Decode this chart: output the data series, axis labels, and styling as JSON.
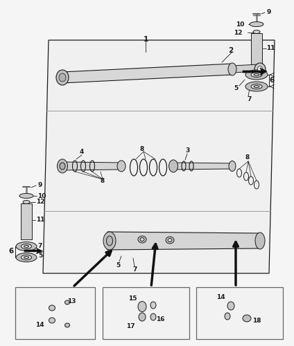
{
  "bg": "#f5f5f5",
  "lc": "#1a1a1a",
  "gc": "#888888",
  "fig_w": 4.24,
  "fig_h": 5.0,
  "dpi": 100
}
